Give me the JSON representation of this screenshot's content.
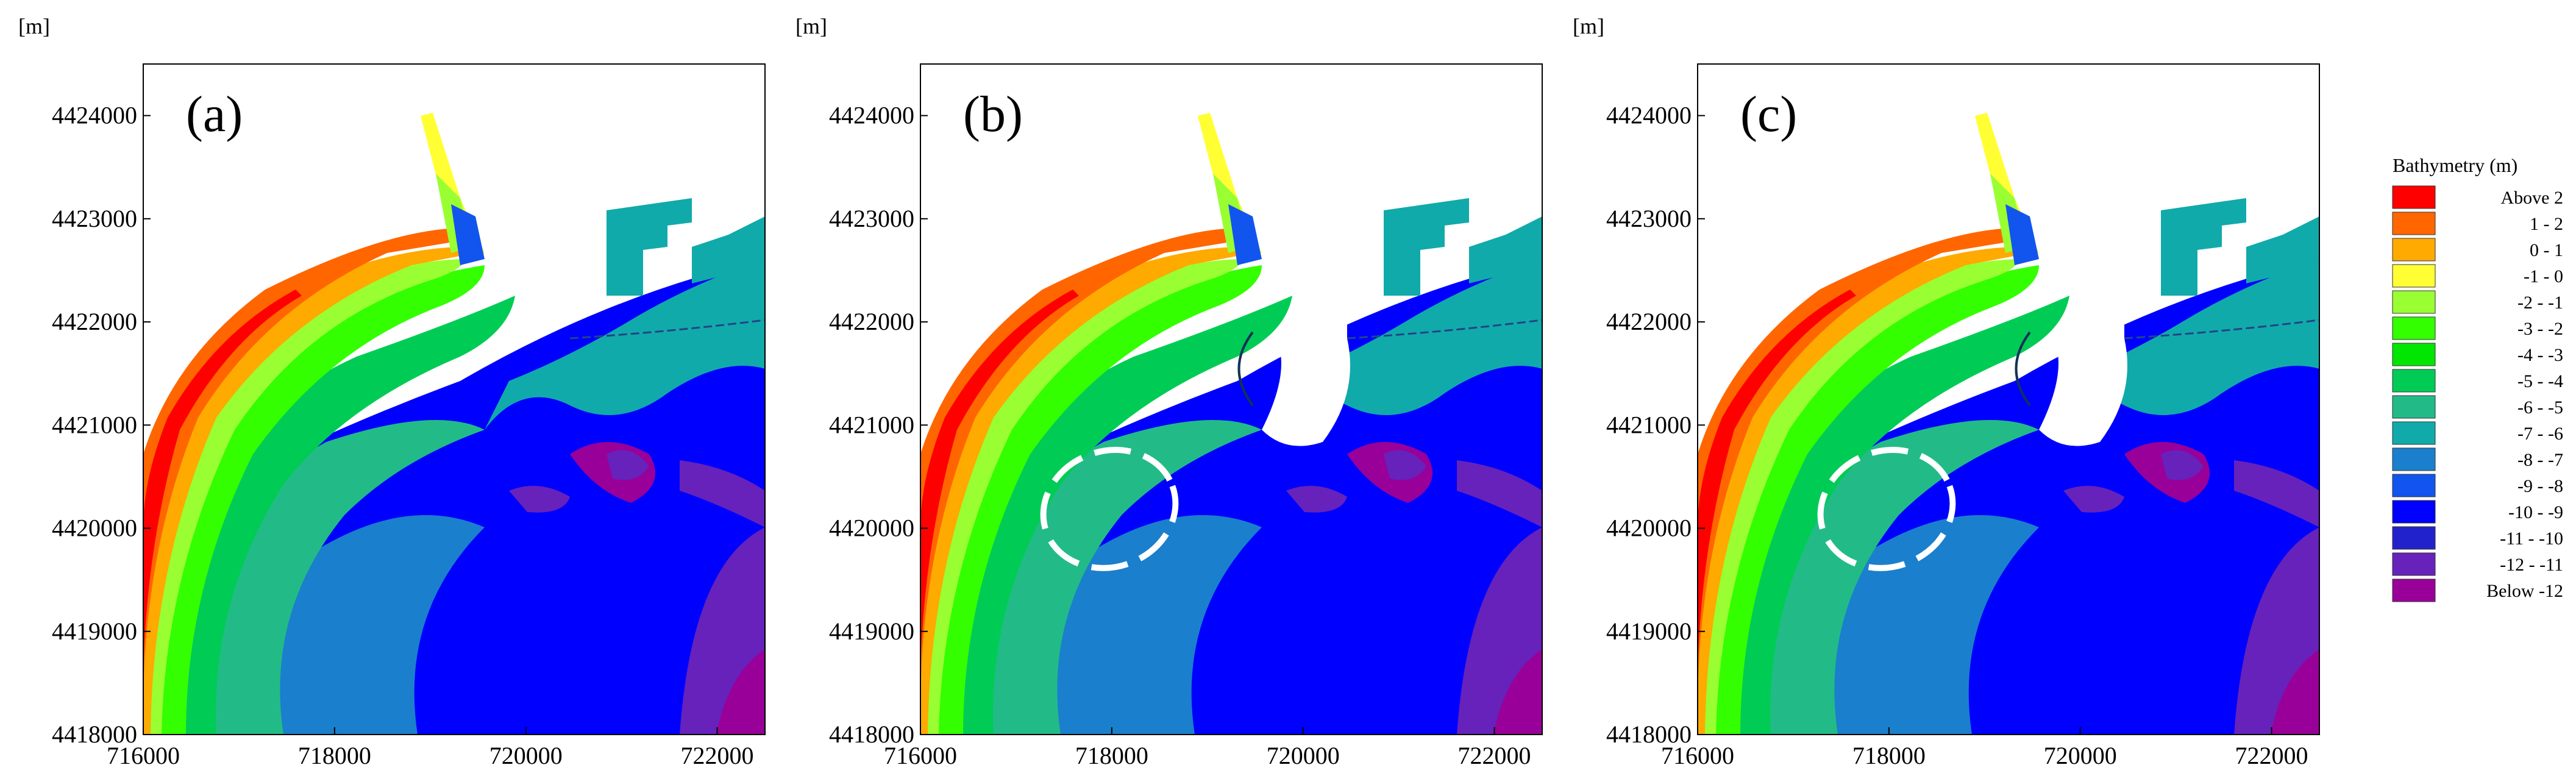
{
  "figure": {
    "panels": [
      {
        "label": "(a)",
        "y_unit": "[m]",
        "x_unit": "[m]",
        "y_ticks": [
          "4424000",
          "4423000",
          "4422000",
          "4421000",
          "4420000",
          "4419000",
          "4418000"
        ],
        "x_ticks": [
          "716000",
          "718000",
          "720000",
          "722000"
        ],
        "breakwater_ring": false
      },
      {
        "label": "(b)",
        "y_unit": "[m]",
        "x_unit": "[m]",
        "y_ticks": [
          "4424000",
          "4423000",
          "4422000",
          "4421000",
          "4420000",
          "4419000",
          "4418000"
        ],
        "x_ticks": [
          "716000",
          "718000",
          "720000",
          "722000"
        ],
        "breakwater_ring": true
      },
      {
        "label": "(c)",
        "y_unit": "[m]",
        "x_unit": "[m]",
        "y_ticks": [
          "4424000",
          "4423000",
          "4422000",
          "4421000",
          "4420000",
          "4419000",
          "4418000"
        ],
        "x_ticks": [
          "716000",
          "718000",
          "720000",
          "722000"
        ],
        "breakwater_ring": true
      }
    ],
    "map_extent": {
      "x": [
        716000,
        722500
      ],
      "y": [
        4418000,
        4424500
      ]
    },
    "legend": {
      "title": "Bathymetry (m)",
      "entries": [
        {
          "label": "Above  2",
          "color": "#ff0000"
        },
        {
          "label": "1 -   2",
          "color": "#ff6600"
        },
        {
          "label": "0 -   1",
          "color": "#ffaa00"
        },
        {
          "label": "-1 -   0",
          "color": "#ffff33"
        },
        {
          "label": "-2 -  -1",
          "color": "#99ff33"
        },
        {
          "label": "-3 -  -2",
          "color": "#33ff00"
        },
        {
          "label": "-4 -  -3",
          "color": "#00e600"
        },
        {
          "label": "-5 -  -4",
          "color": "#00cc55"
        },
        {
          "label": "-6 -  -5",
          "color": "#22bb88"
        },
        {
          "label": "-7 -  -6",
          "color": "#11aaaa"
        },
        {
          "label": "-8 -  -7",
          "color": "#1a7fcc"
        },
        {
          "label": "-9 -  -8",
          "color": "#1155ee"
        },
        {
          "label": "-10 -  -9",
          "color": "#0000ff"
        },
        {
          "label": "-11 - -10",
          "color": "#2222cc"
        },
        {
          "label": "-12 - -11",
          "color": "#6622bb"
        },
        {
          "label": "Below -12",
          "color": "#990099"
        }
      ]
    }
  }
}
